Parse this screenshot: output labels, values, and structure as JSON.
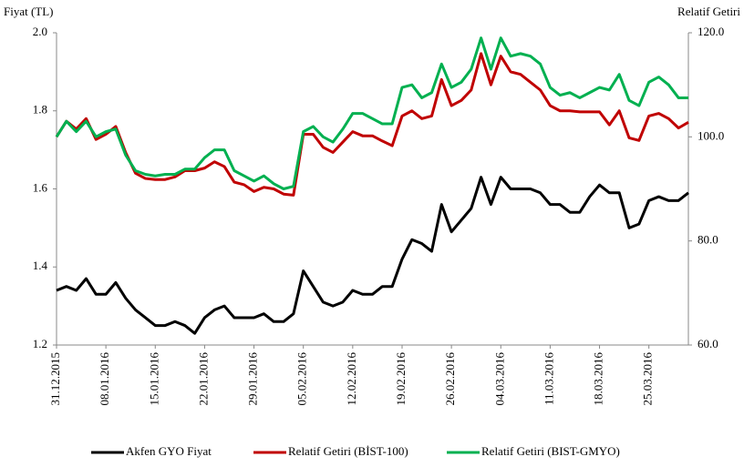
{
  "chart_data": {
    "type": "line",
    "y_label": "Fiyat (TL)",
    "y2_label": "Relatif Getiri",
    "categories": [
      "31.12.2015",
      null,
      null,
      null,
      null,
      "08.01.2016",
      null,
      null,
      null,
      null,
      "15.01.2016",
      null,
      null,
      null,
      null,
      "22.01.2016",
      null,
      null,
      null,
      null,
      "29.01.2016",
      null,
      null,
      null,
      null,
      "05.02.2016",
      null,
      null,
      null,
      null,
      "12.02.2016",
      null,
      null,
      null,
      null,
      "19.02.2016",
      null,
      null,
      null,
      null,
      "26.02.2016",
      null,
      null,
      null,
      null,
      "04.03.2016",
      null,
      null,
      null,
      null,
      "11.03.2016",
      null,
      null,
      null,
      null,
      "18.03.2016",
      null,
      null,
      null,
      null,
      "25.03.2016",
      null,
      null,
      null,
      null
    ],
    "series": [
      {
        "name": "Akfen GYO Fiyat",
        "color": "#000000",
        "values": [
          1.34,
          1.35,
          1.34,
          1.37,
          1.33,
          1.33,
          1.36,
          1.32,
          1.29,
          1.27,
          1.25,
          1.25,
          1.26,
          1.25,
          1.23,
          1.27,
          1.29,
          1.3,
          1.27,
          1.27,
          1.27,
          1.28,
          1.26,
          1.26,
          1.28,
          1.39,
          1.35,
          1.31,
          1.3,
          1.31,
          1.34,
          1.33,
          1.33,
          1.35,
          1.35,
          1.42,
          1.47,
          1.46,
          1.44,
          1.56,
          1.49,
          1.52,
          1.55,
          1.63,
          1.56,
          1.63,
          1.6,
          1.6,
          1.6,
          1.59,
          1.56,
          1.56,
          1.54,
          1.54,
          1.58,
          1.61,
          1.59,
          1.59,
          1.5,
          1.51,
          1.57,
          1.58,
          1.57,
          1.57,
          1.59
        ]
      },
      {
        "name": "Relatif Getiri (BİST-100)",
        "color": "#c00000",
        "axis": "y2",
        "values": [
          100,
          103,
          101.5,
          103.5,
          99.5,
          100.5,
          102,
          97,
          93,
          92,
          91.8,
          91.8,
          92.3,
          93.5,
          93.5,
          94.0,
          95.2,
          94.3,
          91.3,
          90.8,
          89.5,
          90.3,
          90,
          89,
          88.8,
          100.5,
          100.5,
          98,
          97,
          99,
          101,
          100.2,
          100.2,
          99.2,
          98.3,
          104,
          105,
          103.5,
          104,
          111,
          106,
          107,
          109,
          116,
          110,
          115.5,
          112.5,
          112,
          110.5,
          109,
          106,
          105,
          105,
          104.8,
          104.8,
          104.8,
          102.3,
          105,
          99.8,
          99.3,
          104,
          104.5,
          103.5,
          101.7,
          102.8
        ]
      },
      {
        "name": "Relatif Getiri (BIST-GMYO)",
        "color": "#00b050",
        "axis": "y2",
        "values": [
          100,
          103,
          101,
          103,
          100,
          101,
          101.5,
          96.5,
          93.5,
          92.8,
          92.5,
          92.8,
          92.8,
          93.8,
          93.8,
          96,
          97.5,
          97.5,
          93.5,
          92.5,
          91.5,
          92.5,
          91,
          90,
          90.5,
          101,
          102,
          100,
          99,
          101.5,
          104.5,
          104.5,
          103.5,
          102.5,
          102.5,
          109.5,
          110,
          107.5,
          108.5,
          114,
          109.5,
          110.5,
          113,
          119,
          113,
          119,
          115.5,
          116,
          115.5,
          114,
          109.5,
          108,
          108.5,
          107.5,
          108.5,
          109.5,
          109,
          112,
          107,
          106,
          110.5,
          111.5,
          110,
          107.5,
          107.5
        ]
      }
    ],
    "ylim": [
      1.2,
      2.0
    ],
    "yticks": [
      1.2,
      1.4,
      1.6,
      1.8,
      {
        "value": 2.0,
        "label": "2.0"
      }
    ],
    "y2lim": [
      60,
      120
    ],
    "y2ticks": [
      {
        "value": 60,
        "label": "60.0"
      },
      {
        "value": 80,
        "label": "80.0"
      },
      {
        "value": 100,
        "label": "100.0"
      },
      {
        "value": 120,
        "label": "120.0"
      }
    ],
    "legend": "bottom"
  }
}
